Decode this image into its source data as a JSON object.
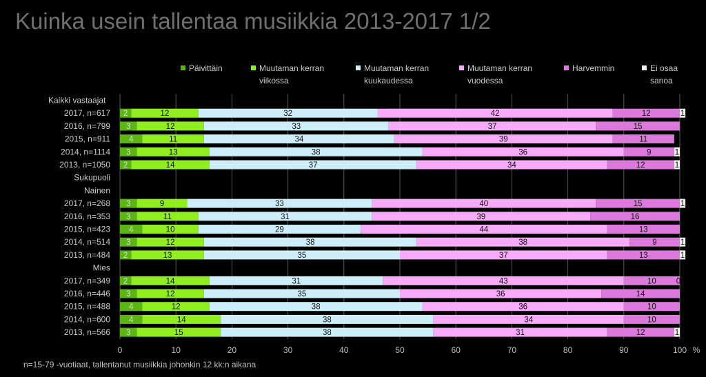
{
  "chart_data": {
    "type": "bar",
    "stacked": true,
    "orientation": "horizontal",
    "title": "Kuinka usein tallentaa musiikkia 2013-2017  1/2",
    "xlim": [
      0,
      100
    ],
    "x_ticks": [
      "0",
      "10",
      "20",
      "30",
      "40",
      "50",
      "60",
      "70",
      "80",
      "90",
      "100"
    ],
    "x_unit": "%",
    "grid": true,
    "legend_position": "top",
    "series": [
      {
        "name": "Päivittäin",
        "color": "#5bb614",
        "text_color": "#dddddd"
      },
      {
        "name": "Muutaman kerran viikossa",
        "color": "#90ee1e",
        "text_color": "#111111"
      },
      {
        "name": "Muutaman kerran kuukaudessa",
        "color": "#cdeef8",
        "text_color": "#111111"
      },
      {
        "name": "Muutaman kerran vuodessa",
        "color": "#f7aaf7",
        "text_color": "#111111"
      },
      {
        "name": "Harvemmin",
        "color": "#dd78dd",
        "text_color": "#111111"
      },
      {
        "name": "Ei osaa sanoa",
        "color": "#f2f2f2",
        "text_color": "#111111"
      }
    ],
    "legend": [
      {
        "line1": "Päivittäin",
        "line2": ""
      },
      {
        "line1": "Muutaman kerran",
        "line2": "viikossa"
      },
      {
        "line1": "Muutaman kerran",
        "line2": "kuukaudessa"
      },
      {
        "line1": "Muutaman kerran",
        "line2": "vuodessa"
      },
      {
        "line1": "Harvemmin",
        "line2": ""
      },
      {
        "line1": "Ei osaa",
        "line2": "sanoa"
      }
    ],
    "rows": [
      {
        "kind": "group",
        "label": "Kaikki vastaajat",
        "align": "left"
      },
      {
        "kind": "bar",
        "label": "2017, n=617",
        "values": [
          2,
          12,
          32,
          42,
          12,
          1
        ],
        "labels": [
          "2",
          "12",
          "32",
          "42",
          "12",
          "1"
        ]
      },
      {
        "kind": "bar",
        "label": "2016, n=799",
        "values": [
          3,
          12,
          33,
          37,
          15,
          0
        ],
        "labels": [
          "3",
          "12",
          "33",
          "37",
          "15",
          ""
        ]
      },
      {
        "kind": "bar",
        "label": "2015, n=911",
        "values": [
          4,
          11,
          34,
          39,
          11,
          0
        ],
        "labels": [
          "4",
          "11",
          "34",
          "39",
          "11",
          ""
        ]
      },
      {
        "kind": "bar",
        "label": "2014, n=1114",
        "values": [
          3,
          13,
          38,
          36,
          9,
          1
        ],
        "labels": [
          "3",
          "13",
          "38",
          "36",
          "9",
          "1"
        ]
      },
      {
        "kind": "bar",
        "label": "2013, n=1050",
        "values": [
          2,
          14,
          37,
          34,
          12,
          1
        ],
        "labels": [
          "2",
          "14",
          "37",
          "34",
          "12",
          "1"
        ]
      },
      {
        "kind": "group",
        "label": "Sukupuoli",
        "align": "right"
      },
      {
        "kind": "group",
        "label": "Nainen",
        "align": "right"
      },
      {
        "kind": "bar",
        "label": "2017, n=268",
        "values": [
          3,
          9,
          33,
          40,
          15,
          1
        ],
        "labels": [
          "3",
          "9",
          "33",
          "40",
          "15",
          "1"
        ]
      },
      {
        "kind": "bar",
        "label": "2016, n=353",
        "values": [
          3,
          11,
          31,
          39,
          16,
          0
        ],
        "labels": [
          "3",
          "11",
          "31",
          "39",
          "16",
          ""
        ]
      },
      {
        "kind": "bar",
        "label": "2015, n=423",
        "values": [
          4,
          10,
          29,
          44,
          13,
          0
        ],
        "labels": [
          "4",
          "10",
          "29",
          "44",
          "13",
          ""
        ]
      },
      {
        "kind": "bar",
        "label": "2014, n=514",
        "values": [
          3,
          12,
          38,
          38,
          9,
          1
        ],
        "labels": [
          "3",
          "12",
          "38",
          "38",
          "9",
          "1"
        ]
      },
      {
        "kind": "bar",
        "label": "2013, n=484",
        "values": [
          2,
          13,
          35,
          37,
          13,
          1
        ],
        "labels": [
          "2",
          "13",
          "35",
          "37",
          "13",
          "1"
        ]
      },
      {
        "kind": "group",
        "label": "Mies",
        "align": "right"
      },
      {
        "kind": "bar",
        "label": "2017, n=349",
        "values": [
          2,
          14,
          31,
          43,
          10,
          0
        ],
        "labels": [
          "2",
          "14",
          "31",
          "43",
          "10",
          "0"
        ]
      },
      {
        "kind": "bar",
        "label": "2016, n=446",
        "values": [
          3,
          12,
          35,
          36,
          14,
          0
        ],
        "labels": [
          "3",
          "12",
          "35",
          "36",
          "14",
          ""
        ]
      },
      {
        "kind": "bar",
        "label": "2015, n=488",
        "values": [
          4,
          12,
          38,
          36,
          10,
          0
        ],
        "labels": [
          "4",
          "12",
          "38",
          "36",
          "10",
          ""
        ]
      },
      {
        "kind": "bar",
        "label": "2014, n=600",
        "values": [
          4,
          14,
          38,
          34,
          10,
          0
        ],
        "labels": [
          "4",
          "14",
          "38",
          "34",
          "10",
          ""
        ]
      },
      {
        "kind": "bar",
        "label": "2013, n=566",
        "values": [
          3,
          15,
          38,
          31,
          12,
          1
        ],
        "labels": [
          "3",
          "15",
          "38",
          "31",
          "12",
          "1"
        ]
      }
    ]
  },
  "footnote": "n=15-79 -vuotiaat, tallentanut musiikkia johonkin 12 kk:n aikana"
}
